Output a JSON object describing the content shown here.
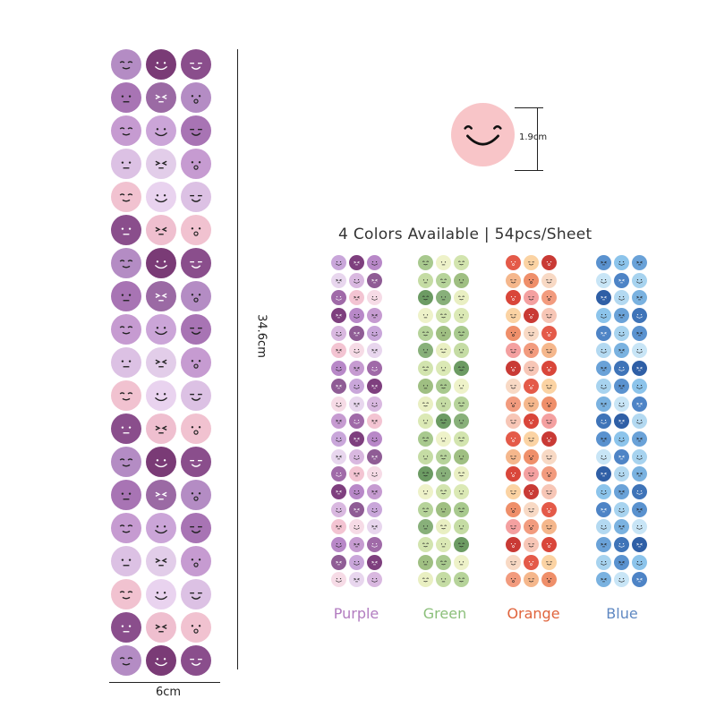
{
  "product": {
    "headline": "4 Colors Available | 54pcs/Sheet",
    "dimensions": {
      "width": "6cm",
      "height": "34.6cm",
      "dot_diameter": "1.9cm"
    },
    "sample_dot_color": "#f8c5c8",
    "variants": [
      {
        "name": "Purple",
        "label_color": "#b27cc0",
        "palette": [
          "#c9a6da",
          "#e8d6ee",
          "#a06aa8",
          "#7e3f7e",
          "#d9b8e0",
          "#f3c4d2",
          "#b888c8",
          "#8f5c95",
          "#f6dbe6",
          "#c69bd1"
        ]
      },
      {
        "name": "Green",
        "label_color": "#8bbf7a",
        "palette": [
          "#dbe9b5",
          "#a8c98e",
          "#c5dca4",
          "#6c9b63",
          "#eef2c9",
          "#b6d39a",
          "#88b07a",
          "#d2e4ae",
          "#9fbf82",
          "#e9efc2"
        ]
      },
      {
        "name": "Orange",
        "label_color": "#e0643c",
        "palette": [
          "#f29b7e",
          "#f7c6b6",
          "#e45a49",
          "#f5b78c",
          "#d9463a",
          "#fbd3a3",
          "#ef8f6a",
          "#f4a0a0",
          "#c93a35",
          "#f8d9c4"
        ]
      },
      {
        "name": "Blue",
        "label_color": "#5f88c2",
        "palette": [
          "#a7d3ef",
          "#7ab2e0",
          "#3f74b8",
          "#5a92cf",
          "#c8e5f6",
          "#2f5fa6",
          "#8cc4eb",
          "#4e84c6",
          "#b3d9f1",
          "#6aa2d8"
        ]
      }
    ],
    "main_sheet": {
      "variant": "Purple",
      "palette": [
        "#b48cc4",
        "#e2cde9",
        "#8a4e8c",
        "#cba5d8",
        "#f1c2d0",
        "#9b6aa4",
        "#dcc1e4",
        "#7a3b76",
        "#c69bd1",
        "#efbfcf",
        "#a874b4",
        "#e9d3ef"
      ]
    }
  }
}
